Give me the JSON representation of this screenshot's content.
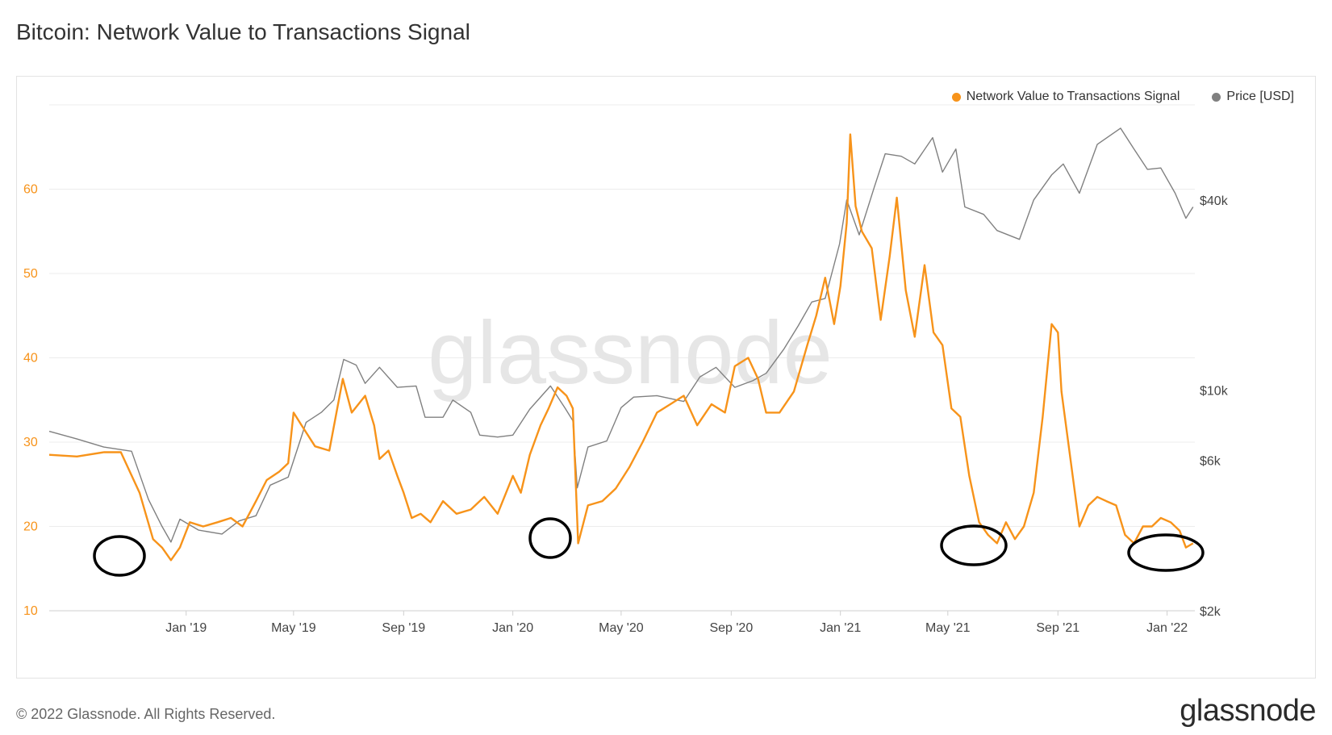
{
  "page": {
    "title": "Bitcoin: Network Value to Transactions Signal",
    "copyright": "© 2022 Glassnode. All Rights Reserved.",
    "logo": "glassnode",
    "watermark": "glassnode"
  },
  "chart_data": {
    "type": "line",
    "title": "Bitcoin: Network Value to Transactions Signal",
    "x_axis": {
      "range": [
        "2018-08-01",
        "2022-02-01"
      ],
      "tick_labels": [
        "Jan '19",
        "May '19",
        "Sep '19",
        "Jan '20",
        "May '20",
        "Sep '20",
        "Jan '21",
        "May '21",
        "Sep '21",
        "Jan '22"
      ],
      "tick_dates": [
        "2019-01-01",
        "2019-05-01",
        "2019-09-01",
        "2020-01-01",
        "2020-05-01",
        "2020-09-01",
        "2021-01-01",
        "2021-05-01",
        "2021-09-01",
        "2022-01-01"
      ]
    },
    "y_axis_left": {
      "ticks": [
        10,
        20,
        30,
        40,
        50,
        60
      ],
      "range": [
        10,
        70
      ],
      "color": "#f7931a"
    },
    "y_axis_right": {
      "scale": "log",
      "ticks": [
        2000,
        6000,
        10000,
        40000
      ],
      "tick_labels": [
        "$2k",
        "$6k",
        "$10k",
        "$40k"
      ],
      "range": [
        2000,
        80000
      ]
    },
    "grid": true,
    "legend": {
      "placement": "top-right"
    },
    "series": [
      {
        "name": "Network Value to Transactions Signal",
        "color": "#f7931a",
        "axis": "left",
        "points": [
          [
            "2018-08-01",
            28.5
          ],
          [
            "2018-09-01",
            28.3
          ],
          [
            "2018-10-01",
            28.8
          ],
          [
            "2018-10-20",
            28.8
          ],
          [
            "2018-11-10",
            24.0
          ],
          [
            "2018-11-25",
            18.5
          ],
          [
            "2018-12-05",
            17.5
          ],
          [
            "2018-12-15",
            16.0
          ],
          [
            "2018-12-25",
            17.5
          ],
          [
            "2019-01-05",
            20.5
          ],
          [
            "2019-01-20",
            20.0
          ],
          [
            "2019-02-05",
            20.5
          ],
          [
            "2019-02-20",
            21.0
          ],
          [
            "2019-03-05",
            20.0
          ],
          [
            "2019-03-20",
            23.0
          ],
          [
            "2019-04-01",
            25.5
          ],
          [
            "2019-04-15",
            26.5
          ],
          [
            "2019-04-25",
            27.5
          ],
          [
            "2019-05-01",
            33.5
          ],
          [
            "2019-05-10",
            32.0
          ],
          [
            "2019-05-25",
            29.5
          ],
          [
            "2019-06-10",
            29.0
          ],
          [
            "2019-06-25",
            37.5
          ],
          [
            "2019-07-05",
            33.5
          ],
          [
            "2019-07-20",
            35.5
          ],
          [
            "2019-07-30",
            32.0
          ],
          [
            "2019-08-05",
            28.0
          ],
          [
            "2019-08-15",
            29.0
          ],
          [
            "2019-08-25",
            26.0
          ],
          [
            "2019-09-01",
            24.0
          ],
          [
            "2019-09-10",
            21.0
          ],
          [
            "2019-09-20",
            21.5
          ],
          [
            "2019-10-01",
            20.5
          ],
          [
            "2019-10-15",
            23.0
          ],
          [
            "2019-10-30",
            21.5
          ],
          [
            "2019-11-15",
            22.0
          ],
          [
            "2019-11-30",
            23.5
          ],
          [
            "2019-12-15",
            21.5
          ],
          [
            "2020-01-01",
            26.0
          ],
          [
            "2020-01-10",
            24.0
          ],
          [
            "2020-01-20",
            28.5
          ],
          [
            "2020-02-01",
            32.0
          ],
          [
            "2020-02-10",
            34.0
          ],
          [
            "2020-02-20",
            36.5
          ],
          [
            "2020-03-01",
            35.5
          ],
          [
            "2020-03-08",
            34.0
          ],
          [
            "2020-03-14",
            18.0
          ],
          [
            "2020-03-25",
            22.5
          ],
          [
            "2020-04-10",
            23.0
          ],
          [
            "2020-04-25",
            24.5
          ],
          [
            "2020-05-10",
            27.0
          ],
          [
            "2020-05-25",
            30.0
          ],
          [
            "2020-06-10",
            33.5
          ],
          [
            "2020-06-25",
            34.5
          ],
          [
            "2020-07-10",
            35.5
          ],
          [
            "2020-07-25",
            32.0
          ],
          [
            "2020-08-10",
            34.5
          ],
          [
            "2020-08-25",
            33.5
          ],
          [
            "2020-09-05",
            39.0
          ],
          [
            "2020-09-20",
            40.0
          ],
          [
            "2020-10-01",
            37.5
          ],
          [
            "2020-10-10",
            33.5
          ],
          [
            "2020-10-25",
            33.5
          ],
          [
            "2020-11-10",
            36.0
          ],
          [
            "2020-11-25",
            41.5
          ],
          [
            "2020-12-05",
            45.0
          ],
          [
            "2020-12-15",
            49.5
          ],
          [
            "2020-12-25",
            44.0
          ],
          [
            "2021-01-01",
            48.5
          ],
          [
            "2021-01-08",
            56.0
          ],
          [
            "2021-01-12",
            66.5
          ],
          [
            "2021-01-18",
            58.0
          ],
          [
            "2021-01-25",
            55.0
          ],
          [
            "2021-02-05",
            53.0
          ],
          [
            "2021-02-15",
            44.5
          ],
          [
            "2021-02-25",
            52.0
          ],
          [
            "2021-03-05",
            59.0
          ],
          [
            "2021-03-15",
            48.0
          ],
          [
            "2021-03-25",
            42.5
          ],
          [
            "2021-04-05",
            51.0
          ],
          [
            "2021-04-15",
            43.0
          ],
          [
            "2021-04-25",
            41.5
          ],
          [
            "2021-05-05",
            34.0
          ],
          [
            "2021-05-15",
            33.0
          ],
          [
            "2021-05-25",
            26.0
          ],
          [
            "2021-06-05",
            20.5
          ],
          [
            "2021-06-15",
            19.0
          ],
          [
            "2021-06-25",
            18.0
          ],
          [
            "2021-07-05",
            20.5
          ],
          [
            "2021-07-15",
            18.5
          ],
          [
            "2021-07-25",
            20.0
          ],
          [
            "2021-08-05",
            24.0
          ],
          [
            "2021-08-15",
            33.0
          ],
          [
            "2021-08-25",
            44.0
          ],
          [
            "2021-09-01",
            43.0
          ],
          [
            "2021-09-05",
            36.0
          ],
          [
            "2021-09-15",
            28.0
          ],
          [
            "2021-09-25",
            20.0
          ],
          [
            "2021-10-05",
            22.5
          ],
          [
            "2021-10-15",
            23.5
          ],
          [
            "2021-10-25",
            23.0
          ],
          [
            "2021-11-05",
            22.5
          ],
          [
            "2021-11-15",
            19.0
          ],
          [
            "2021-11-25",
            18.0
          ],
          [
            "2021-12-05",
            20.0
          ],
          [
            "2021-12-15",
            20.0
          ],
          [
            "2021-12-25",
            21.0
          ],
          [
            "2022-01-05",
            20.5
          ],
          [
            "2022-01-15",
            19.5
          ],
          [
            "2022-01-22",
            17.5
          ],
          [
            "2022-01-30",
            18.0
          ]
        ]
      },
      {
        "name": "Price [USD]",
        "color": "#808080",
        "axis": "right",
        "points": [
          [
            "2018-08-01",
            7400
          ],
          [
            "2018-09-01",
            7000
          ],
          [
            "2018-10-01",
            6600
          ],
          [
            "2018-11-01",
            6400
          ],
          [
            "2018-11-20",
            4500
          ],
          [
            "2018-12-05",
            3700
          ],
          [
            "2018-12-15",
            3300
          ],
          [
            "2018-12-25",
            3900
          ],
          [
            "2019-01-15",
            3600
          ],
          [
            "2019-02-10",
            3500
          ],
          [
            "2019-03-01",
            3850
          ],
          [
            "2019-03-20",
            4000
          ],
          [
            "2019-04-05",
            5000
          ],
          [
            "2019-04-25",
            5300
          ],
          [
            "2019-05-15",
            7900
          ],
          [
            "2019-06-01",
            8500
          ],
          [
            "2019-06-15",
            9300
          ],
          [
            "2019-06-26",
            12500
          ],
          [
            "2019-07-10",
            12000
          ],
          [
            "2019-07-20",
            10500
          ],
          [
            "2019-08-05",
            11800
          ],
          [
            "2019-08-25",
            10200
          ],
          [
            "2019-09-15",
            10300
          ],
          [
            "2019-09-25",
            8200
          ],
          [
            "2019-10-15",
            8200
          ],
          [
            "2019-10-26",
            9300
          ],
          [
            "2019-11-15",
            8500
          ],
          [
            "2019-11-25",
            7200
          ],
          [
            "2019-12-15",
            7100
          ],
          [
            "2020-01-01",
            7200
          ],
          [
            "2020-01-20",
            8700
          ],
          [
            "2020-02-12",
            10300
          ],
          [
            "2020-02-28",
            8800
          ],
          [
            "2020-03-08",
            8000
          ],
          [
            "2020-03-13",
            4900
          ],
          [
            "2020-03-25",
            6600
          ],
          [
            "2020-04-15",
            6900
          ],
          [
            "2020-05-01",
            8800
          ],
          [
            "2020-05-15",
            9500
          ],
          [
            "2020-06-10",
            9600
          ],
          [
            "2020-07-10",
            9200
          ],
          [
            "2020-07-28",
            11000
          ],
          [
            "2020-08-15",
            11800
          ],
          [
            "2020-09-05",
            10200
          ],
          [
            "2020-09-25",
            10700
          ],
          [
            "2020-10-10",
            11300
          ],
          [
            "2020-10-30",
            13500
          ],
          [
            "2020-11-15",
            16000
          ],
          [
            "2020-11-30",
            19000
          ],
          [
            "2020-12-15",
            19500
          ],
          [
            "2020-12-31",
            29000
          ],
          [
            "2021-01-08",
            40000
          ],
          [
            "2021-01-22",
            31000
          ],
          [
            "2021-02-08",
            44000
          ],
          [
            "2021-02-20",
            56000
          ],
          [
            "2021-03-10",
            55000
          ],
          [
            "2021-03-25",
            52000
          ],
          [
            "2021-04-14",
            63000
          ],
          [
            "2021-04-25",
            49000
          ],
          [
            "2021-05-10",
            58000
          ],
          [
            "2021-05-20",
            38000
          ],
          [
            "2021-06-10",
            36000
          ],
          [
            "2021-06-25",
            32000
          ],
          [
            "2021-07-20",
            30000
          ],
          [
            "2021-08-05",
            40000
          ],
          [
            "2021-08-25",
            48000
          ],
          [
            "2021-09-07",
            52000
          ],
          [
            "2021-09-25",
            42000
          ],
          [
            "2021-10-15",
            60000
          ],
          [
            "2021-11-10",
            67500
          ],
          [
            "2021-11-25",
            58000
          ],
          [
            "2021-12-10",
            50000
          ],
          [
            "2021-12-25",
            50500
          ],
          [
            "2022-01-10",
            42000
          ],
          [
            "2022-01-22",
            35000
          ],
          [
            "2022-01-30",
            38000
          ]
        ]
      }
    ]
  }
}
